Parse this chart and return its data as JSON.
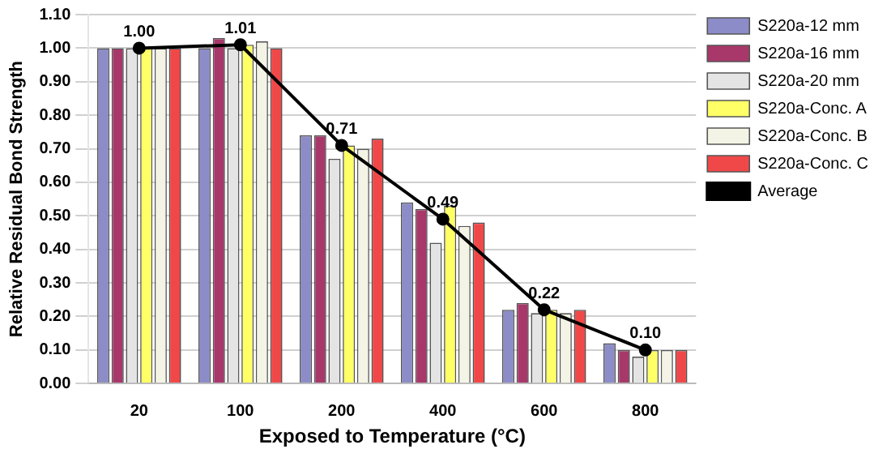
{
  "chart_data": {
    "type": "bar",
    "xlabel": "Exposed to Temperature (°C)",
    "ylabel": "Relative Residual Bond Strength",
    "categories": [
      "20",
      "100",
      "200",
      "400",
      "600",
      "800"
    ],
    "series": [
      {
        "name": "S220a-12 mm",
        "color": "#8c8cc8",
        "values": [
          1.0,
          1.0,
          0.74,
          0.54,
          0.22,
          0.12
        ]
      },
      {
        "name": "S220a-16 mm",
        "color": "#a8386a",
        "values": [
          1.0,
          1.03,
          0.74,
          0.52,
          0.24,
          0.1
        ]
      },
      {
        "name": "S220a-20 mm",
        "color": "#e4e4e4",
        "values": [
          1.0,
          1.0,
          0.67,
          0.42,
          0.21,
          0.08
        ]
      },
      {
        "name": "S220a-Conc. A",
        "color": "#ffff66",
        "values": [
          1.0,
          1.01,
          0.71,
          0.53,
          0.22,
          0.1
        ]
      },
      {
        "name": "S220a-Conc. B",
        "color": "#f4f4e6",
        "values": [
          1.0,
          1.02,
          0.7,
          0.47,
          0.21,
          0.1
        ]
      },
      {
        "name": "S220a-Conc. C",
        "color": "#f04848",
        "values": [
          1.0,
          1.0,
          0.73,
          0.48,
          0.22,
          0.1
        ]
      },
      {
        "name": "Average",
        "type": "line",
        "color": "#000000",
        "values": [
          1.0,
          1.01,
          0.71,
          0.49,
          0.22,
          0.1
        ],
        "value_labels": [
          "1.00",
          "1.01",
          "0.71",
          "0.49",
          "0.22",
          "0.10"
        ]
      }
    ],
    "ylim": [
      0,
      1.1
    ],
    "yticks": [
      {
        "value": 0,
        "label": "0.00"
      },
      {
        "value": 0.1,
        "label": "0.10"
      },
      {
        "value": 0.2,
        "label": "0.20"
      },
      {
        "value": 0.3,
        "label": "0.30"
      },
      {
        "value": 0.4,
        "label": "0.40"
      },
      {
        "value": 0.5,
        "label": "0.50"
      },
      {
        "value": 0.6,
        "label": "0.60"
      },
      {
        "value": 0.7,
        "label": "0.70"
      },
      {
        "value": 0.8,
        "label": "0.80"
      },
      {
        "value": 0.9,
        "label": "0.90"
      },
      {
        "value": 1.0,
        "label": "1.00"
      },
      {
        "value": 1.1,
        "label": "1.10"
      }
    ],
    "grid": "y",
    "legend": "right",
    "marker": "circle",
    "line_style": "solid"
  }
}
